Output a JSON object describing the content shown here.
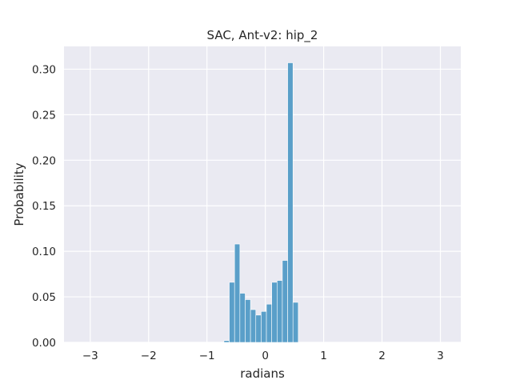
{
  "chart_data": {
    "type": "bar",
    "title": "SAC, Ant-v2: hip_2",
    "xlabel": "radians",
    "ylabel": "Probability",
    "xlim": [
      -3.45,
      3.35
    ],
    "ylim": [
      0,
      0.325
    ],
    "xticks": [
      -3,
      -2,
      -1,
      0,
      1,
      2,
      3
    ],
    "xtick_labels": [
      "−3",
      "−2",
      "−1",
      "0",
      "1",
      "2",
      "3"
    ],
    "yticks": [
      0,
      0.05,
      0.1,
      0.15,
      0.2,
      0.25,
      0.3
    ],
    "ytick_labels": [
      "0.00",
      "0.05",
      "0.10",
      "0.15",
      "0.20",
      "0.25",
      "0.30"
    ],
    "grid": true,
    "bar_color": "#5a9fc9",
    "background_color": "#eaeaf2",
    "bin_width": 0.0911,
    "bins": [
      {
        "x0": -0.709,
        "value": 0.002
      },
      {
        "x0": -0.618,
        "value": 0.066
      },
      {
        "x0": -0.527,
        "value": 0.108
      },
      {
        "x0": -0.436,
        "value": 0.054
      },
      {
        "x0": -0.345,
        "value": 0.047
      },
      {
        "x0": -0.254,
        "value": 0.036
      },
      {
        "x0": -0.163,
        "value": 0.03
      },
      {
        "x0": -0.072,
        "value": 0.034
      },
      {
        "x0": 0.019,
        "value": 0.042
      },
      {
        "x0": 0.11,
        "value": 0.066
      },
      {
        "x0": 0.201,
        "value": 0.068
      },
      {
        "x0": 0.292,
        "value": 0.09
      },
      {
        "x0": 0.383,
        "value": 0.307
      },
      {
        "x0": 0.474,
        "value": 0.044
      }
    ]
  }
}
